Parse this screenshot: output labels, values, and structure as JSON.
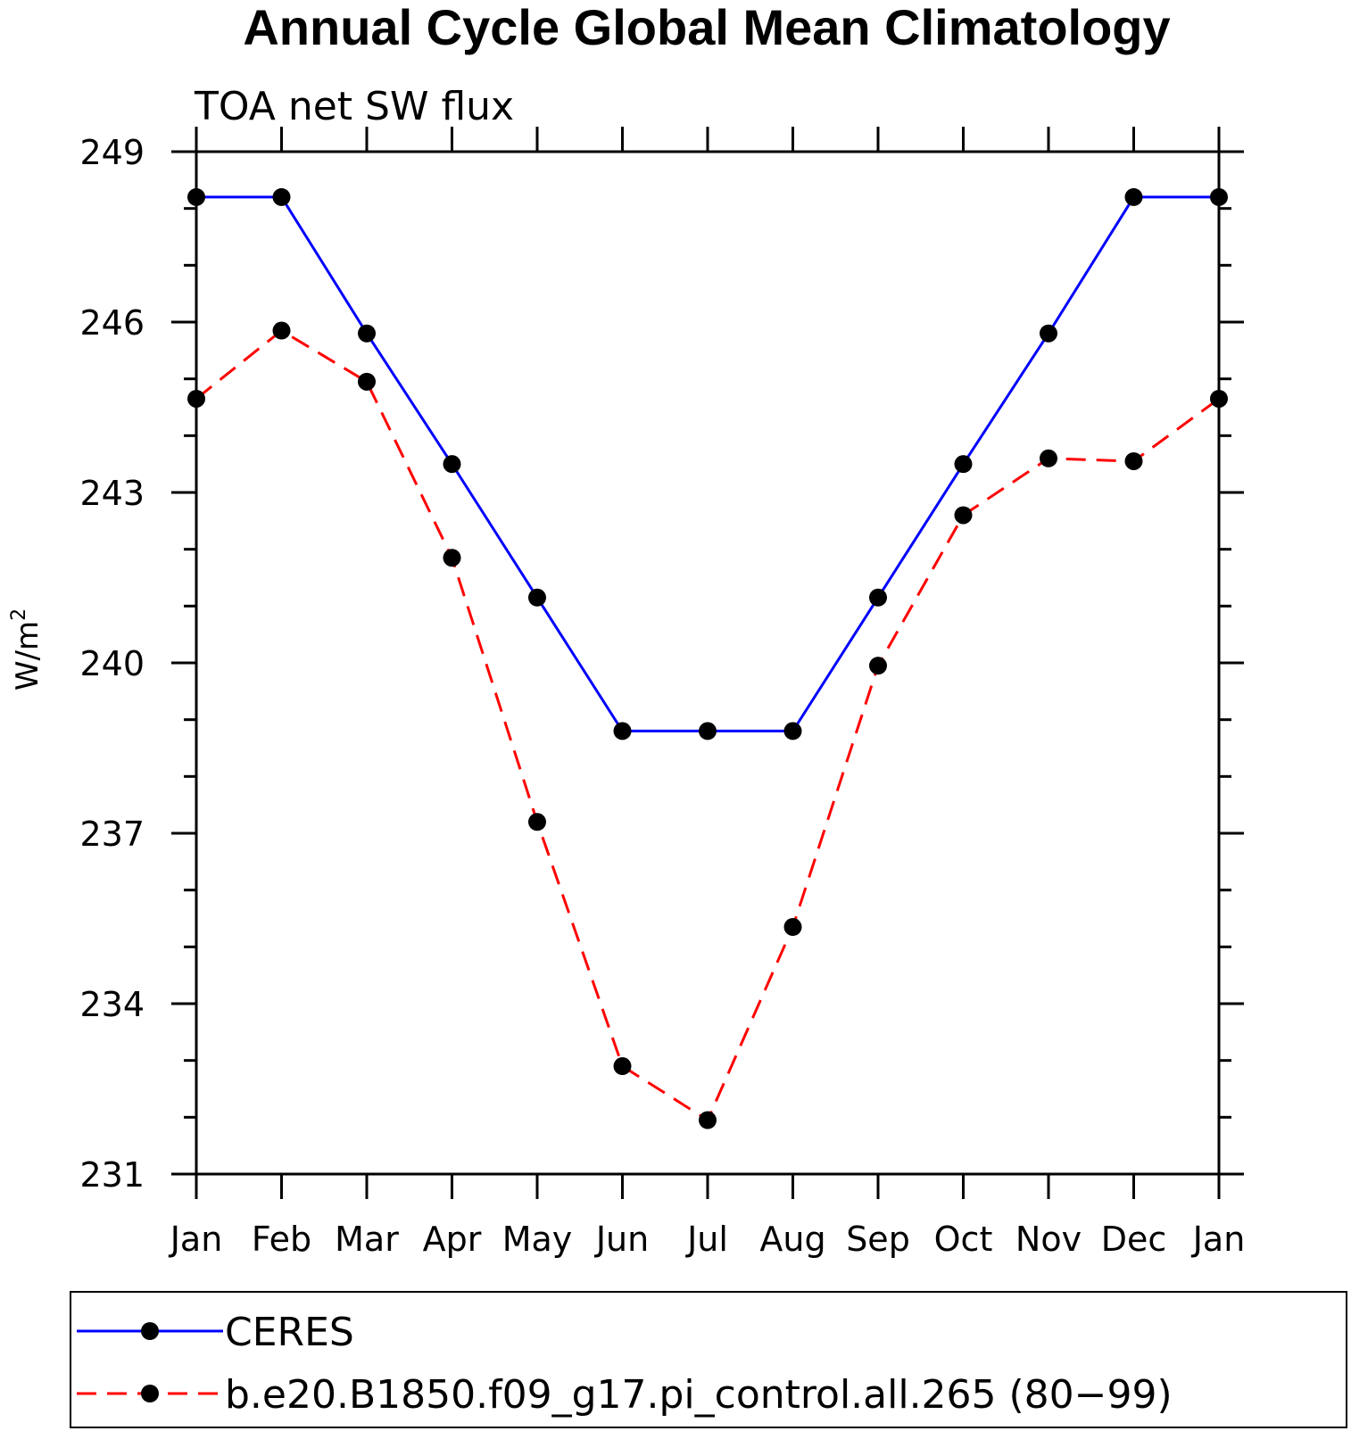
{
  "chart_data": {
    "type": "line",
    "title": "Annual Cycle Global Mean Climatology",
    "subtitle": "TOA net SW flux",
    "ylabel": "W/m",
    "ylabel_superscript": "2",
    "categories": [
      "Jan",
      "Feb",
      "Mar",
      "Apr",
      "May",
      "Jun",
      "Jul",
      "Aug",
      "Sep",
      "Oct",
      "Nov",
      "Dec",
      "Jan"
    ],
    "ylim": [
      231,
      249
    ],
    "yticks": [
      231,
      234,
      237,
      240,
      243,
      246,
      249
    ],
    "grid": false,
    "legend_position": "bottom",
    "series": [
      {
        "name": "CERES",
        "color": "#0000ff",
        "line_style": "solid",
        "marker": "filled-circle",
        "values": [
          248.2,
          248.2,
          245.8,
          243.5,
          241.15,
          238.8,
          238.8,
          238.8,
          241.15,
          243.5,
          245.8,
          248.2,
          248.2
        ]
      },
      {
        "name": "b.e20.B1850.f09_g17.pi_control.all.265 (80−99)",
        "color": "#ff0000",
        "line_style": "dashed",
        "marker": "filled-circle",
        "values": [
          244.65,
          245.85,
          244.95,
          241.85,
          237.2,
          232.9,
          231.95,
          235.35,
          239.95,
          242.6,
          243.6,
          243.55,
          244.65
        ]
      }
    ]
  }
}
